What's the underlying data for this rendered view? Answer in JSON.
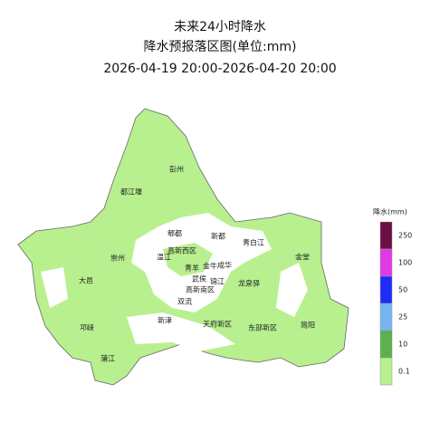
{
  "header": {
    "title": "未来24小时降水",
    "subtitle": "降水预报落区图(单位:mm)",
    "period": "2026-04-19 20:00-2026-04-20 20:00"
  },
  "map": {
    "districts": [
      "彭州",
      "都江堰",
      "郫都",
      "新都",
      "青白江",
      "高新西区",
      "崇州",
      "温江",
      "金堂",
      "青羊",
      "金牛",
      "成华",
      "武侯",
      "锦江",
      "大邑",
      "龙泉驿",
      "高新南区",
      "双流",
      "新津",
      "天府新区",
      "东部新区",
      "简阳",
      "邛崃",
      "蒲江"
    ]
  },
  "legend": {
    "title": "降水(mm)",
    "items": [
      {
        "label": "250",
        "color": "#6b0f45"
      },
      {
        "label": "100",
        "color": "#e03ae8"
      },
      {
        "label": "50",
        "color": "#1f2cf5"
      },
      {
        "label": "25",
        "color": "#77b5f2"
      },
      {
        "label": "10",
        "color": "#5db04d"
      },
      {
        "label": "0.1",
        "color": "#b8f08f"
      }
    ]
  }
}
